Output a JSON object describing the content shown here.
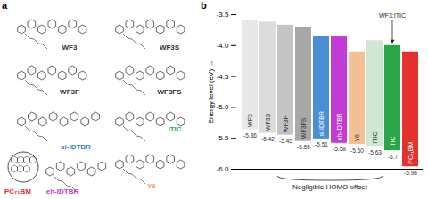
{
  "panel_a": {
    "label": "a",
    "molecules": [
      {
        "name": "WF3",
        "color": "#333333"
      },
      {
        "name": "WF3S",
        "color": "#333333"
      },
      {
        "name": "WF3F",
        "color": "#333333"
      },
      {
        "name": "WF3FS",
        "color": "#333333"
      },
      {
        "name": "ITIC",
        "color": "#2aa54a"
      },
      {
        "name": "si-IDTBR",
        "color": "#3a7fc8"
      },
      {
        "name": "eh-IDTBR",
        "color": "#c23bd4"
      },
      {
        "name": "Y6",
        "color": "#e8a060"
      },
      {
        "name": "PC₇₁BM",
        "color": "#e4312b"
      }
    ]
  },
  "chart_data": {
    "type": "bar",
    "panel_label": "b",
    "y_label": "Energy level (eV)",
    "categories": [
      "WF3",
      "WF3S",
      "WF3F",
      "WF3FS",
      "si-IDTBR",
      "eh-IDTBR",
      "Y6",
      "ITIC",
      "ITIC",
      "PC₇₁BM"
    ],
    "values": [
      -5.36,
      -5.42,
      -5.45,
      -5.55,
      -5.51,
      -5.58,
      -5.6,
      -5.63,
      -5.7,
      -5.96
    ],
    "value_labels": [
      "-5.36",
      "-5.42",
      "-5.45",
      "-5.55",
      "-5.51",
      "-5.58",
      "-5.60",
      "-5.63",
      "-5.7",
      "-5.96"
    ],
    "lumo": [
      -3.6,
      -3.62,
      -3.67,
      -3.7,
      -3.85,
      -3.86,
      -4.1,
      -3.92,
      -4.0,
      -4.1
    ],
    "colors": [
      "#e8e8e8",
      "#dcdcdc",
      "#c4c4c4",
      "#a8a8a8",
      "#4a8fd6",
      "#c23bd4",
      "#f4bf95",
      "#cfe8d3",
      "#2aa54a",
      "#e4312b"
    ],
    "ylim": [
      -6.0,
      -3.5
    ],
    "yticks": [
      {
        "value": -6.0,
        "label": "-6.0"
      },
      -5.5,
      {
        "value": -5.0,
        "label": "-5.0"
      },
      -4.5,
      {
        "value": -4.0,
        "label": "-4.0"
      },
      -3.5
    ],
    "annotations": [
      "Negligible HOMO offset",
      "WF3:ITIC"
    ],
    "data_labels": true,
    "tick_labels": "y"
  }
}
